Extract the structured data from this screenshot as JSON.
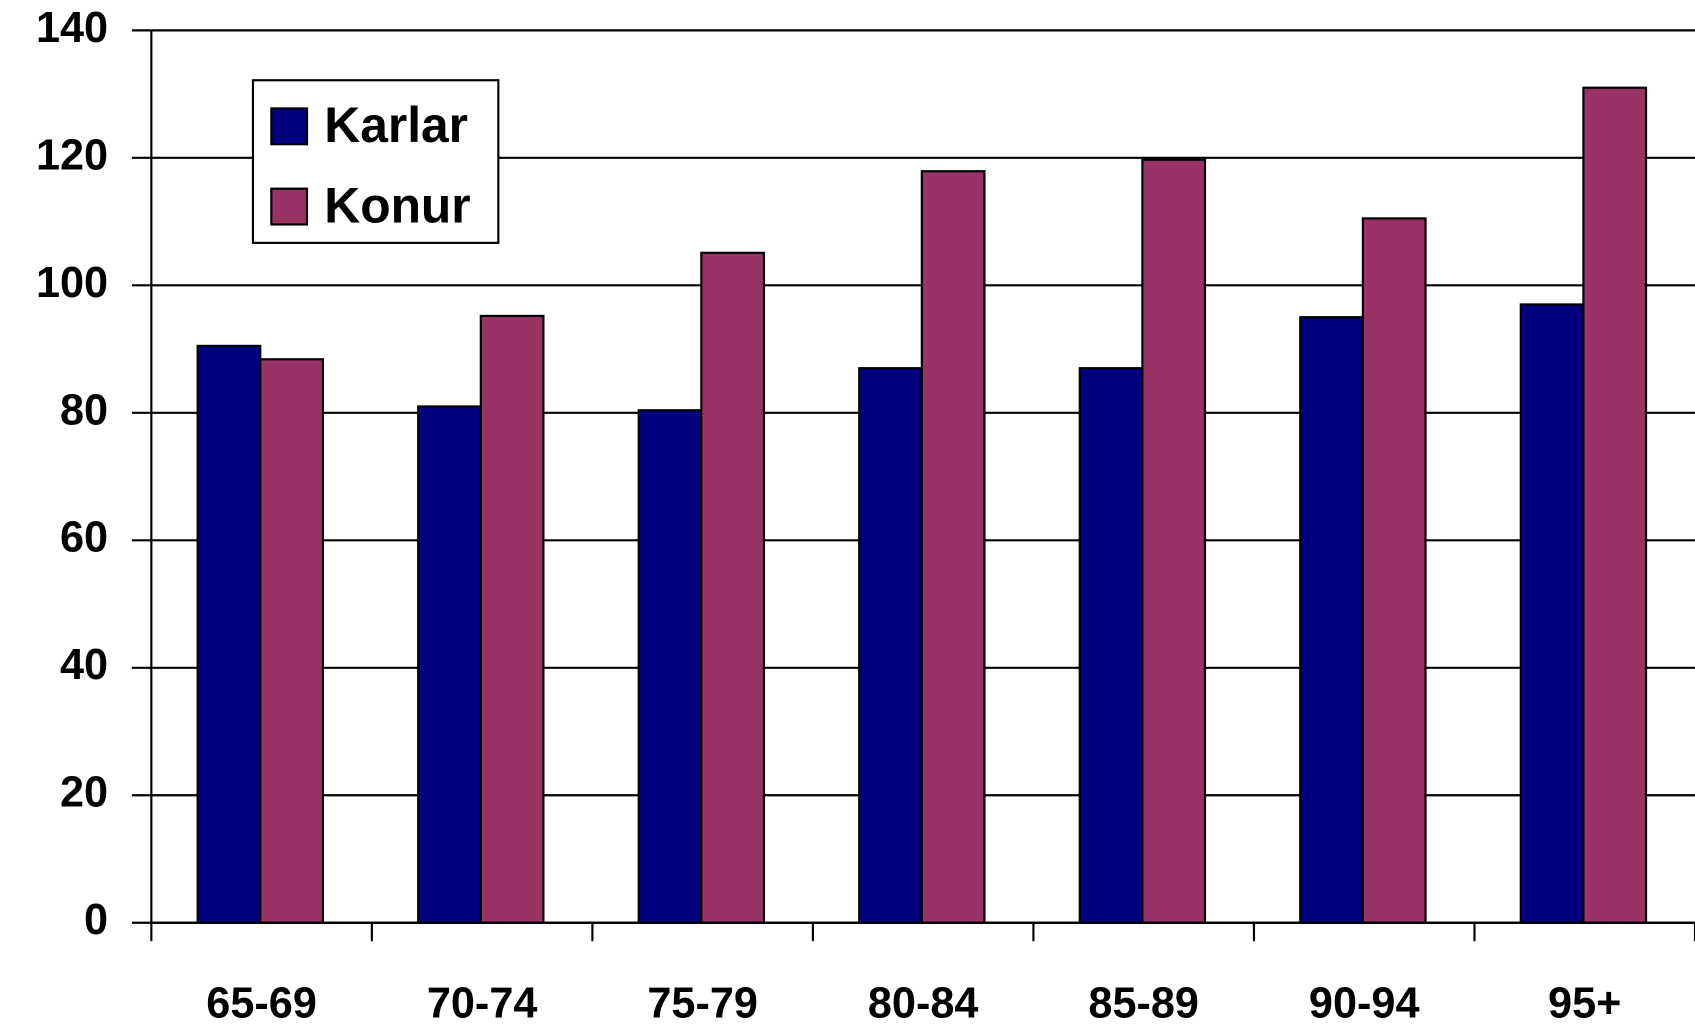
{
  "chart_data": {
    "type": "bar",
    "categories": [
      "65-69",
      "70-74",
      "75-79",
      "80-84",
      "85-89",
      "90-94",
      "95+"
    ],
    "series": [
      {
        "name": "Karlar",
        "color": "#000080",
        "values": [
          90.5,
          81,
          80.4,
          87,
          87,
          95,
          97
        ]
      },
      {
        "name": "Konur",
        "color": "#993366",
        "values": [
          88.4,
          95.2,
          105.1,
          117.9,
          119.7,
          110.5,
          131
        ]
      }
    ],
    "ylim": [
      0,
      140
    ],
    "yticks": [
      0,
      20,
      40,
      60,
      80,
      100,
      120,
      140
    ],
    "grid": true,
    "legend": "upper left"
  }
}
